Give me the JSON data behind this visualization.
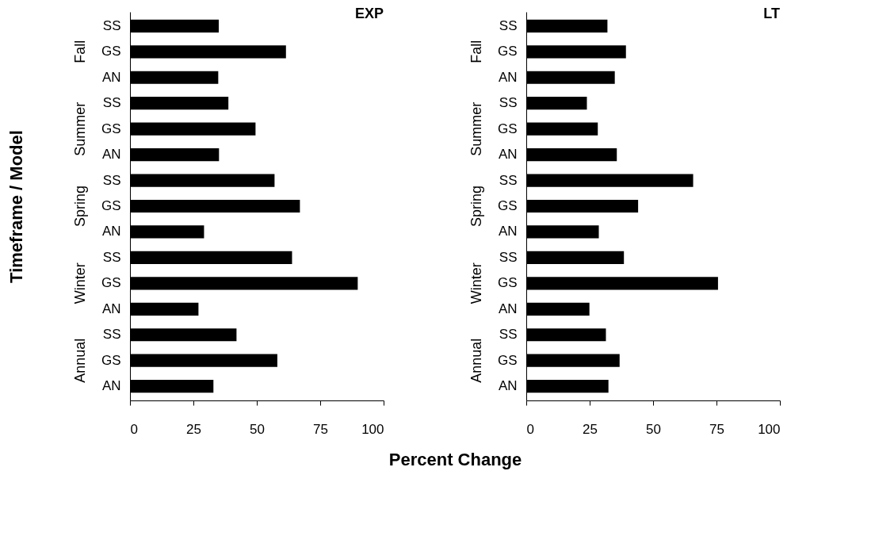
{
  "chart_data": [
    {
      "type": "bar",
      "orientation": "horizontal",
      "title": "EXP",
      "ylabel": "Timeframe / Model",
      "xlabel": "Percent Change",
      "categories": [
        "SS",
        "GS",
        "AN",
        "SS",
        "GS",
        "AN",
        "SS",
        "GS",
        "AN",
        "SS",
        "GS",
        "AN",
        "SS",
        "GS",
        "AN"
      ],
      "values": [
        35,
        61.5,
        34.8,
        38.8,
        49.5,
        35.1,
        57,
        67,
        29.2,
        63.9,
        89.8,
        27,
        42,
        58.1,
        32.9
      ],
      "color": "#000000",
      "annotations": [
        "Fall",
        "Summer",
        "Spring",
        "Winter",
        "Annual"
      ],
      "xlim": [
        0,
        100
      ],
      "xticks": [
        0,
        25,
        50,
        75,
        100
      ],
      "grid": false
    },
    {
      "type": "bar",
      "orientation": "horizontal",
      "title": "LT",
      "categories": [
        "SS",
        "GS",
        "AN",
        "SS",
        "GS",
        "AN",
        "SS",
        "GS",
        "AN",
        "SS",
        "GS",
        "AN",
        "SS",
        "GS",
        "AN"
      ],
      "values": [
        32,
        39.3,
        34.9,
        23.9,
        28.2,
        35.7,
        65.8,
        44.1,
        28.6,
        38.5,
        75.6,
        24.9,
        31.4,
        36.8,
        32.4
      ],
      "color": "#000000",
      "annotations": [
        "Fall",
        "Summer",
        "Spring",
        "Winter",
        "Annual"
      ],
      "xlim": [
        0,
        100
      ],
      "xticks": [
        0,
        25,
        50,
        75,
        100
      ],
      "grid": false
    }
  ]
}
